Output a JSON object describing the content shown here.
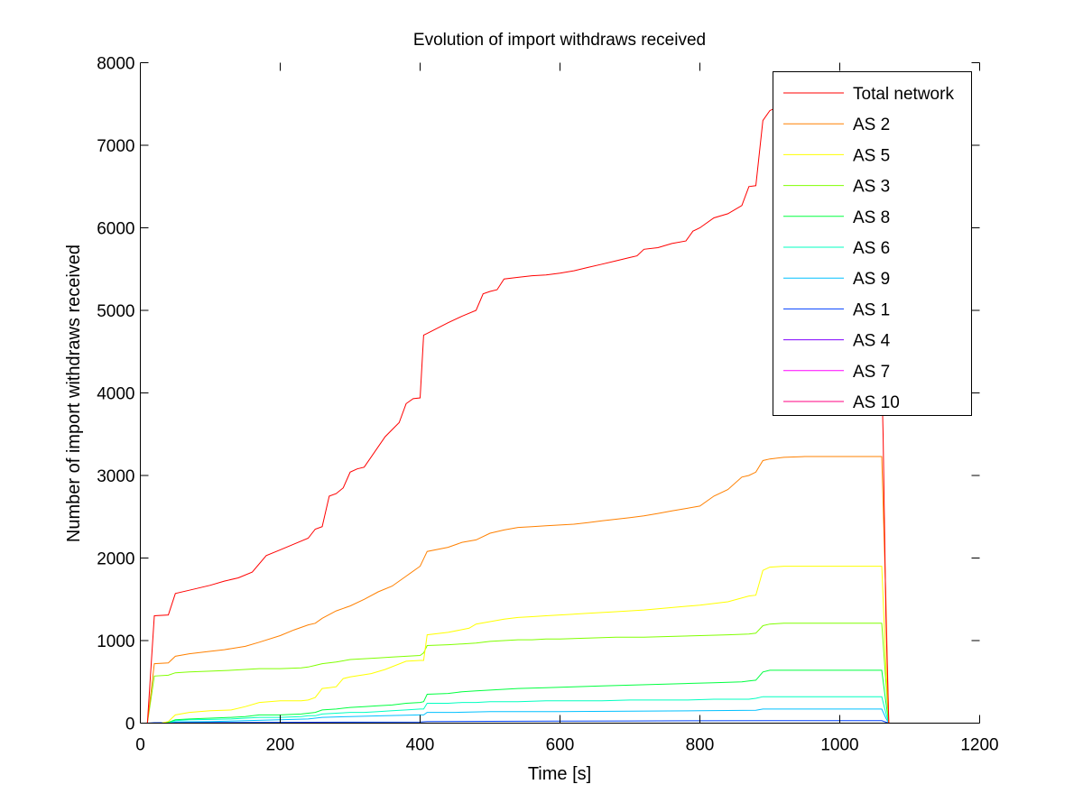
{
  "chart_data": {
    "type": "line",
    "title": "Evolution of import withdraws received",
    "xlabel": "Time [s]",
    "ylabel": "Number of import withdraws received",
    "xlim": [
      0,
      1200
    ],
    "ylim": [
      0,
      8000
    ],
    "xticks": [
      0,
      200,
      400,
      600,
      800,
      1000,
      1200
    ],
    "yticks": [
      0,
      1000,
      2000,
      3000,
      4000,
      5000,
      6000,
      7000,
      8000
    ],
    "grid": false,
    "legend_position": "top-right",
    "series": [
      {
        "name": "Total network",
        "color": "#ff0000",
        "x": [
          0,
          10,
          20,
          40,
          50,
          70,
          100,
          120,
          140,
          160,
          180,
          200,
          220,
          240,
          250,
          260,
          270,
          280,
          290,
          300,
          310,
          320,
          350,
          370,
          380,
          390,
          400,
          405,
          410,
          440,
          460,
          480,
          490,
          500,
          510,
          520,
          540,
          560,
          580,
          600,
          620,
          640,
          660,
          680,
          700,
          710,
          720,
          740,
          760,
          780,
          790,
          800,
          820,
          840,
          860,
          870,
          880,
          890,
          900,
          920,
          950,
          1000,
          1050,
          1062,
          1066,
          1070,
          1080,
          1200
        ],
        "y": [
          0,
          0,
          1300,
          1310,
          1570,
          1610,
          1670,
          1720,
          1760,
          1830,
          2030,
          2100,
          2170,
          2240,
          2350,
          2380,
          2750,
          2780,
          2850,
          3040,
          3080,
          3100,
          3470,
          3640,
          3870,
          3930,
          3940,
          4700,
          4720,
          4850,
          4930,
          5000,
          5200,
          5230,
          5250,
          5380,
          5400,
          5420,
          5430,
          5450,
          5480,
          5520,
          5560,
          5600,
          5640,
          5660,
          5740,
          5760,
          5810,
          5840,
          5960,
          6000,
          6120,
          6170,
          6270,
          6500,
          6510,
          7300,
          7420,
          7500,
          7600,
          7700,
          7750,
          3500,
          1300,
          0,
          0,
          0
        ]
      },
      {
        "name": "AS 2",
        "color": "#ff8000",
        "x": [
          0,
          10,
          20,
          40,
          50,
          70,
          100,
          120,
          150,
          170,
          200,
          220,
          240,
          250,
          260,
          280,
          300,
          320,
          340,
          360,
          380,
          400,
          410,
          440,
          460,
          480,
          500,
          520,
          540,
          560,
          580,
          600,
          620,
          640,
          660,
          680,
          700,
          720,
          740,
          760,
          780,
          800,
          820,
          840,
          860,
          870,
          880,
          890,
          900,
          920,
          950,
          1000,
          1050,
          1060,
          1066,
          1070,
          1080,
          1200
        ],
        "y": [
          0,
          0,
          720,
          730,
          810,
          840,
          870,
          890,
          930,
          980,
          1060,
          1130,
          1190,
          1210,
          1270,
          1360,
          1420,
          1500,
          1590,
          1660,
          1780,
          1900,
          2080,
          2130,
          2190,
          2220,
          2300,
          2340,
          2370,
          2380,
          2390,
          2400,
          2410,
          2430,
          2450,
          2470,
          2490,
          2510,
          2540,
          2570,
          2600,
          2630,
          2750,
          2830,
          2980,
          3000,
          3040,
          3180,
          3200,
          3220,
          3230,
          3230,
          3230,
          3230,
          1500,
          0,
          0,
          0
        ]
      },
      {
        "name": "AS 5",
        "color": "#ffff00",
        "x": [
          0,
          10,
          20,
          30,
          40,
          50,
          70,
          100,
          130,
          150,
          170,
          200,
          230,
          240,
          250,
          260,
          270,
          280,
          290,
          300,
          330,
          350,
          380,
          400,
          405,
          410,
          440,
          470,
          480,
          500,
          520,
          540,
          560,
          580,
          600,
          640,
          680,
          720,
          760,
          800,
          840,
          870,
          880,
          890,
          900,
          920,
          950,
          1000,
          1050,
          1060,
          1066,
          1070,
          1080,
          1200
        ],
        "y": [
          0,
          0,
          0,
          0,
          20,
          100,
          130,
          150,
          160,
          200,
          250,
          270,
          270,
          280,
          310,
          420,
          430,
          440,
          540,
          560,
          600,
          650,
          750,
          760,
          760,
          1070,
          1100,
          1150,
          1200,
          1230,
          1260,
          1280,
          1290,
          1300,
          1310,
          1330,
          1350,
          1370,
          1400,
          1430,
          1470,
          1540,
          1550,
          1850,
          1890,
          1900,
          1900,
          1900,
          1900,
          1900,
          700,
          0,
          0,
          0
        ]
      },
      {
        "name": "AS 3",
        "color": "#80ff00",
        "x": [
          0,
          10,
          20,
          40,
          50,
          70,
          100,
          130,
          150,
          170,
          200,
          230,
          240,
          250,
          260,
          280,
          300,
          320,
          340,
          360,
          380,
          400,
          405,
          410,
          440,
          460,
          480,
          500,
          520,
          540,
          560,
          580,
          600,
          640,
          680,
          720,
          760,
          800,
          840,
          870,
          880,
          890,
          900,
          920,
          950,
          1000,
          1050,
          1060,
          1066,
          1070,
          1080,
          1200
        ],
        "y": [
          0,
          0,
          570,
          580,
          610,
          620,
          630,
          640,
          650,
          660,
          660,
          670,
          680,
          700,
          720,
          740,
          770,
          780,
          790,
          800,
          810,
          820,
          850,
          940,
          950,
          960,
          970,
          990,
          1000,
          1010,
          1010,
          1020,
          1020,
          1030,
          1040,
          1040,
          1050,
          1060,
          1070,
          1080,
          1090,
          1180,
          1200,
          1210,
          1210,
          1210,
          1210,
          1210,
          500,
          0,
          0,
          0
        ]
      },
      {
        "name": "AS 8",
        "color": "#00ff40",
        "x": [
          0,
          10,
          20,
          30,
          40,
          50,
          70,
          100,
          130,
          150,
          170,
          200,
          230,
          240,
          250,
          260,
          280,
          300,
          320,
          340,
          360,
          380,
          400,
          405,
          410,
          440,
          460,
          480,
          500,
          540,
          580,
          620,
          660,
          700,
          740,
          780,
          820,
          860,
          870,
          880,
          890,
          900,
          920,
          950,
          1000,
          1050,
          1060,
          1066,
          1070,
          1080,
          1200
        ],
        "y": [
          0,
          0,
          0,
          0,
          10,
          40,
          50,
          60,
          70,
          80,
          100,
          100,
          110,
          120,
          130,
          160,
          170,
          190,
          200,
          210,
          220,
          240,
          250,
          260,
          350,
          360,
          380,
          390,
          400,
          420,
          430,
          440,
          450,
          460,
          470,
          480,
          490,
          500,
          510,
          520,
          620,
          640,
          640,
          640,
          640,
          640,
          640,
          250,
          0,
          0,
          0
        ]
      },
      {
        "name": "AS 6",
        "color": "#00ffc0",
        "x": [
          0,
          10,
          20,
          30,
          40,
          50,
          70,
          100,
          130,
          150,
          170,
          200,
          230,
          240,
          250,
          260,
          280,
          300,
          320,
          340,
          360,
          380,
          400,
          405,
          410,
          440,
          460,
          480,
          500,
          540,
          580,
          620,
          660,
          700,
          740,
          780,
          820,
          860,
          870,
          880,
          890,
          900,
          920,
          950,
          1000,
          1050,
          1060,
          1066,
          1070,
          1080,
          1200
        ],
        "y": [
          0,
          0,
          0,
          0,
          10,
          30,
          40,
          45,
          50,
          60,
          70,
          70,
          80,
          90,
          90,
          110,
          120,
          130,
          130,
          140,
          150,
          160,
          170,
          170,
          240,
          240,
          250,
          250,
          260,
          260,
          270,
          270,
          270,
          280,
          280,
          280,
          290,
          290,
          290,
          300,
          320,
          320,
          320,
          320,
          320,
          320,
          320,
          120,
          0,
          0,
          0
        ]
      },
      {
        "name": "AS 9",
        "color": "#00c0ff",
        "x": [
          0,
          10,
          20,
          30,
          40,
          50,
          100,
          150,
          200,
          240,
          250,
          260,
          300,
          350,
          400,
          405,
          410,
          450,
          500,
          600,
          700,
          800,
          880,
          890,
          900,
          950,
          1000,
          1050,
          1060,
          1066,
          1070,
          1080,
          1200
        ],
        "y": [
          0,
          0,
          0,
          0,
          5,
          15,
          20,
          30,
          40,
          50,
          60,
          70,
          80,
          90,
          100,
          100,
          130,
          130,
          140,
          140,
          145,
          150,
          155,
          170,
          170,
          170,
          170,
          170,
          170,
          60,
          0,
          0,
          0
        ]
      },
      {
        "name": "AS 1",
        "color": "#0040ff",
        "x": [
          0,
          10,
          20,
          100,
          200,
          300,
          400,
          410,
          500,
          600,
          700,
          800,
          900,
          1000,
          1060,
          1070,
          1080,
          1200
        ],
        "y": [
          0,
          0,
          5,
          8,
          10,
          12,
          14,
          20,
          22,
          24,
          26,
          28,
          30,
          30,
          30,
          0,
          0,
          0
        ]
      },
      {
        "name": "AS 4",
        "color": "#8000ff",
        "x": [
          0,
          1060,
          1070,
          1080,
          1200
        ],
        "y": [
          0,
          0,
          0,
          0,
          0
        ]
      },
      {
        "name": "AS 7",
        "color": "#ff00ff",
        "x": [
          0,
          1060,
          1070,
          1080,
          1200
        ],
        "y": [
          0,
          0,
          0,
          0,
          0
        ]
      },
      {
        "name": "AS 10",
        "color": "#ff0080",
        "x": [
          0,
          1060,
          1070,
          1080,
          1200
        ],
        "y": [
          0,
          0,
          0,
          0,
          0
        ]
      }
    ]
  }
}
